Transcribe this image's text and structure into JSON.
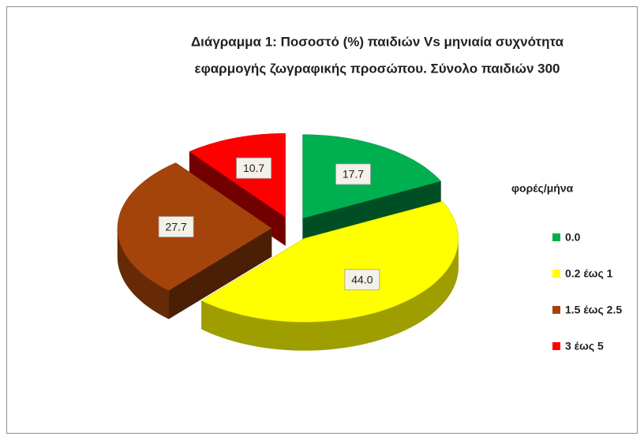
{
  "chart_data": {
    "type": "pie3d",
    "title": [
      "Διάγραμμα 1: Ποσοστό (%) παιδιών Vs μηνιαία συχνότητα",
      "εφαρμογής ζωγραφικής προσώπου. Σύνολο παιδιών 300"
    ],
    "categories": [
      "0.0",
      "0.2 έως 1",
      "1.5 έως 2.5",
      "3 έως 5"
    ],
    "values": [
      17.7,
      44.0,
      27.7,
      10.7
    ],
    "value_labels": [
      "17.7",
      "44.0",
      "27.7",
      "10.7"
    ],
    "colors": [
      "#00b050",
      "#ffff00",
      "#a5440a",
      "#ff0000"
    ],
    "legend_title": "φορές/μήνα",
    "legend": "right"
  }
}
